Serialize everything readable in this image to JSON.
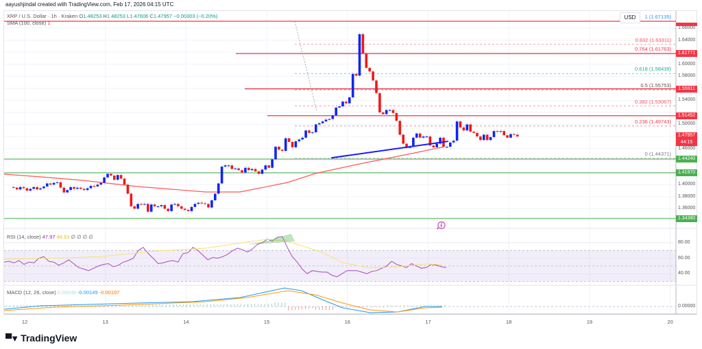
{
  "credit": "aayushjindal created with TradingView.com, Feb 17, 2026 04:15 UTC",
  "header": {
    "symbol": "XRP / U.S. Dollar · 1h · Kraken",
    "open_label": "O",
    "open": "1.48253",
    "high_label": "H",
    "high": "1.48253",
    "low_label": "L",
    "low": "1.47606",
    "close_label": "C",
    "close": "1.47957",
    "change": "−0.00303 (−0.20%)",
    "currency_button": "USD"
  },
  "indicators": {
    "sma": {
      "label": "SMA (100, close)",
      "value": "1"
    },
    "rsi": {
      "label": "RSI (14, close)",
      "value": "47.97",
      "ma": "48.83",
      "extra": "∅ ∅ ∅ ∅"
    },
    "macd": {
      "label": "MACD (12, 26, close)",
      "hist": "0.00048",
      "macd": "-0.00149",
      "signal": "-0.00197"
    }
  },
  "price_axis": {
    "ticks": [
      "1.66000",
      "1.64000",
      "1.60000",
      "1.58000",
      "1.54000",
      "1.50000",
      "1.46000",
      "1.40000",
      "1.38000",
      "1.36000"
    ],
    "tags": [
      {
        "value": "1.61771",
        "color": "#f23645"
      },
      {
        "value": "1.55911",
        "color": "#f23645"
      },
      {
        "value": "1.51452",
        "color": "#f23645"
      },
      {
        "value": "1.47957",
        "sub": "44:15",
        "color": "#f23645"
      },
      {
        "value": "1.44240",
        "color": "#4caf50"
      },
      {
        "value": "1.41970",
        "color": "#4caf50"
      },
      {
        "value": "1.34380",
        "color": "#4caf50"
      }
    ]
  },
  "rsi_axis": {
    "ticks": [
      "80.00",
      "60.00",
      "40.00"
    ]
  },
  "macd_axis": {
    "ticks": [
      "0.00000"
    ]
  },
  "time_axis": {
    "ticks": [
      "12",
      "13",
      "14",
      "15",
      "16",
      "17",
      "18",
      "19",
      "20"
    ]
  },
  "fib_levels": [
    {
      "label": "1 (1.67135)",
      "color": "#2196f3"
    },
    {
      "label": "0.832 (1.63311)",
      "color": "#f7525f"
    },
    {
      "label": "0.764 (1.61763)",
      "color": "#f23645"
    },
    {
      "label": "0.618 (1.58439)",
      "color": "#22ab94"
    },
    {
      "label": "0.5 (1.55753)",
      "color": "#555555"
    },
    {
      "label": "0.382 (1.53067)",
      "color": "#f7525f"
    },
    {
      "label": "0.236 (1.49743)",
      "color": "#f23645"
    },
    {
      "label": "0 (1.44371)",
      "color": "#787b86"
    }
  ],
  "branding": {
    "logo_text": "TradingView",
    "logo_mark": "TV"
  },
  "chart_data": {
    "type": "candlestick",
    "title": "XRP / U.S. Dollar · 1h · Kraken",
    "x_ticks": [
      "12",
      "13",
      "14",
      "15",
      "16",
      "17",
      "18",
      "19",
      "20"
    ],
    "ylim": [
      1.33,
      1.675
    ],
    "last_price": 1.47957,
    "ohlc_last": {
      "open": 1.48253,
      "high": 1.48253,
      "low": 1.47606,
      "close": 1.47957
    },
    "horizontal_levels": {
      "resistance": [
        1.67135,
        1.61771,
        1.55911,
        1.51452
      ],
      "support": [
        1.4424,
        1.4197,
        1.3438
      ]
    },
    "fibonacci": [
      {
        "ratio": 1,
        "price": 1.67135
      },
      {
        "ratio": 0.832,
        "price": 1.63311
      },
      {
        "ratio": 0.764,
        "price": 1.61763
      },
      {
        "ratio": 0.618,
        "price": 1.58439
      },
      {
        "ratio": 0.5,
        "price": 1.55753
      },
      {
        "ratio": 0.382,
        "price": 1.53067
      },
      {
        "ratio": 0.236,
        "price": 1.49743
      },
      {
        "ratio": 0,
        "price": 1.44371
      }
    ],
    "trendline": {
      "from": {
        "day": 15.8,
        "price": 1.4445
      },
      "to": {
        "day": 17.25,
        "price": 1.472
      },
      "color": "#1a1aff"
    },
    "sma100_approx": [
      {
        "day": 11.7,
        "price": 1.42
      },
      {
        "day": 12.5,
        "price": 1.416
      },
      {
        "day": 13.2,
        "price": 1.408
      },
      {
        "day": 14.0,
        "price": 1.404
      },
      {
        "day": 14.5,
        "price": 1.408
      },
      {
        "day": 15.0,
        "price": 1.42
      },
      {
        "day": 15.5,
        "price": 1.436
      },
      {
        "day": 16.0,
        "price": 1.444
      },
      {
        "day": 16.5,
        "price": 1.452
      },
      {
        "day": 17.2,
        "price": 1.463
      }
    ],
    "rsi": {
      "last": 47.97,
      "ma": 48.83,
      "overbought": 70,
      "oversold": 30,
      "peak": 88
    },
    "macd": {
      "hist": 0.00048,
      "macd": -0.00149,
      "signal": -0.00197
    }
  }
}
